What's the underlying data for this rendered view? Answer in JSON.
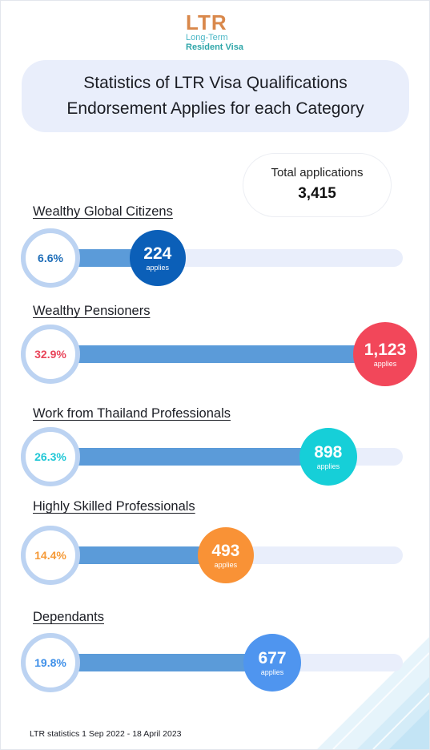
{
  "logo": {
    "mark": "LTR",
    "line1": "Long-Term",
    "line2": "Resident Visa"
  },
  "title": {
    "line1": "Statistics of LTR Visa Qualifications",
    "line2": "Endorsement Applies for each Category"
  },
  "total": {
    "label": "Total applications",
    "value": "3,415"
  },
  "footer": "LTR statistics 1 Sep 2022 - 18 April 2023",
  "chart_data": {
    "type": "bar",
    "orientation": "horizontal",
    "unit_label": "applies",
    "max_value": 1123,
    "categories": [
      "Wealthy Global Citizens",
      "Wealthy Pensioners",
      "Work from Thailand Professionals",
      "Highly Skilled Professionals",
      "Dependants"
    ],
    "values": [
      224,
      1123,
      898,
      493,
      677
    ],
    "value_labels": [
      "224",
      "1,123",
      "898",
      "493",
      "677"
    ],
    "percent_labels": [
      "6.6%",
      "32.9%",
      "26.3%",
      "14.4%",
      "19.8%"
    ],
    "colors": [
      "#0b5fb8",
      "#f2475a",
      "#16cfd8",
      "#f99236",
      "#4f95ef"
    ],
    "percent_colors": [
      "#1e6db8",
      "#e9455a",
      "#1fc7d6",
      "#f59a38",
      "#3e8fe8"
    ],
    "legend": "none",
    "grid": false
  }
}
